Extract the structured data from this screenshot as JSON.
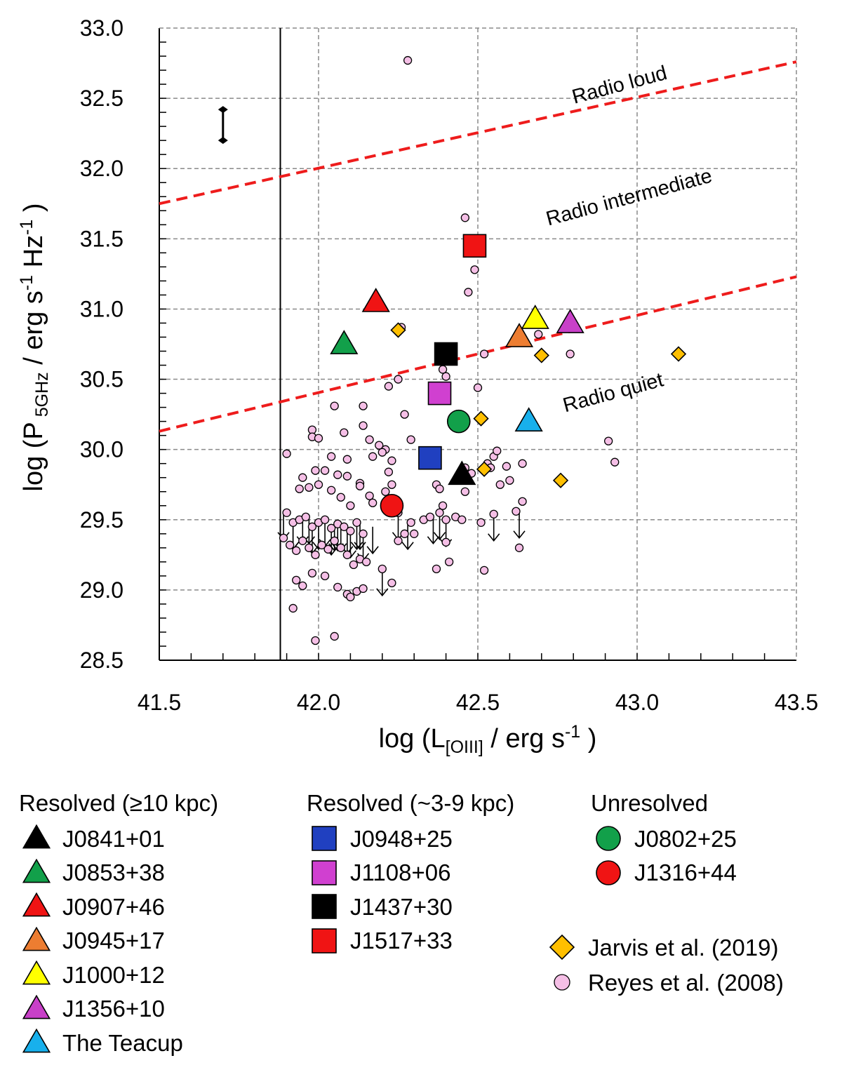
{
  "chart_data": {
    "type": "scatter",
    "xlabel": "log (L[OIII] / erg s-1 )",
    "ylabel": "log (P5GHz / erg s-1 Hz-1 )",
    "xlim": [
      41.5,
      43.5
    ],
    "ylim": [
      28.5,
      33.0
    ],
    "x_ticks": [
      "41.5",
      "42.0",
      "42.5",
      "43.0",
      "43.5"
    ],
    "y_ticks": [
      "28.5",
      "29.0",
      "29.5",
      "30.0",
      "30.5",
      "31.0",
      "31.5",
      "32.0",
      "32.5",
      "33.0"
    ],
    "grid": true,
    "vertical_line_x": 41.88,
    "error_bar": {
      "x": 41.7,
      "y_low": 32.2,
      "y_high": 32.42
    },
    "dividing_lines": [
      {
        "name": "upper",
        "x": [
          41.5,
          43.5
        ],
        "y": [
          31.75,
          32.76
        ],
        "color": "#ee1c1c"
      },
      {
        "name": "lower",
        "x": [
          41.5,
          43.5
        ],
        "y": [
          30.13,
          31.23
        ],
        "color": "#ee1c1c"
      }
    ],
    "region_labels": [
      {
        "text": "Radio loud",
        "x": 42.95,
        "y": 32.55,
        "angle": -15
      },
      {
        "text": "Radio intermediate",
        "x": 42.98,
        "y": 31.75,
        "angle": -15
      },
      {
        "text": "Radio quiet",
        "x": 42.93,
        "y": 30.36,
        "angle": -15
      }
    ],
    "series": [
      {
        "name": "J0841+01",
        "marker": "triangle",
        "color": "#000000",
        "points": [
          [
            42.45,
            29.82
          ]
        ]
      },
      {
        "name": "J0853+38",
        "marker": "triangle",
        "color": "#12a04a",
        "points": [
          [
            42.08,
            30.75
          ]
        ]
      },
      {
        "name": "J0907+46",
        "marker": "triangle",
        "color": "#f01414",
        "points": [
          [
            42.18,
            31.05
          ]
        ]
      },
      {
        "name": "J0945+17",
        "marker": "triangle",
        "color": "#ed7d31",
        "points": [
          [
            42.63,
            30.8
          ]
        ]
      },
      {
        "name": "J1000+12",
        "marker": "triangle",
        "color": "#ffff00",
        "points": [
          [
            42.68,
            30.93
          ]
        ]
      },
      {
        "name": "J1356+10",
        "marker": "triangle",
        "color": "#c840c8",
        "points": [
          [
            42.79,
            30.9
          ]
        ]
      },
      {
        "name": "The Teacup",
        "marker": "triangle",
        "color": "#18b0ec",
        "points": [
          [
            42.66,
            30.2
          ]
        ]
      },
      {
        "name": "J0948+25",
        "marker": "square",
        "color": "#2040c0",
        "points": [
          [
            42.35,
            29.94
          ]
        ]
      },
      {
        "name": "J1108+06",
        "marker": "square",
        "color": "#d040d0",
        "points": [
          [
            42.38,
            30.4
          ]
        ]
      },
      {
        "name": "J1437+30",
        "marker": "square",
        "color": "#000000",
        "points": [
          [
            42.4,
            30.68
          ]
        ]
      },
      {
        "name": "J1517+33",
        "marker": "square",
        "color": "#f01414",
        "points": [
          [
            42.49,
            31.45
          ]
        ]
      },
      {
        "name": "J0802+25",
        "marker": "circle",
        "color": "#12a04a",
        "points": [
          [
            42.44,
            30.2
          ]
        ]
      },
      {
        "name": "J1316+44",
        "marker": "circle",
        "color": "#f01414",
        "points": [
          [
            42.23,
            29.6
          ]
        ]
      },
      {
        "name": "Jarvis et al. (2019)",
        "marker": "diamond",
        "color": "#ffbf00",
        "points": [
          [
            42.25,
            30.85
          ],
          [
            42.51,
            30.22
          ],
          [
            42.52,
            29.86
          ],
          [
            42.7,
            30.67
          ],
          [
            42.76,
            29.78
          ],
          [
            43.13,
            30.68
          ]
        ]
      },
      {
        "name": "Reyes et al. (2008)",
        "marker": "small-circle",
        "color": "#f5bfe6",
        "points": [
          [
            42.28,
            32.77
          ],
          [
            42.46,
            31.65
          ],
          [
            42.49,
            31.28
          ],
          [
            42.47,
            31.12
          ],
          [
            42.26,
            30.87
          ],
          [
            42.39,
            30.57
          ],
          [
            42.4,
            30.52
          ],
          [
            42.25,
            30.5
          ],
          [
            42.22,
            30.45
          ],
          [
            42.5,
            30.44
          ],
          [
            42.52,
            30.68
          ],
          [
            42.69,
            30.82
          ],
          [
            42.79,
            30.68
          ],
          [
            42.05,
            30.31
          ],
          [
            42.14,
            30.31
          ],
          [
            41.98,
            30.14
          ],
          [
            41.98,
            30.09
          ],
          [
            42.0,
            30.08
          ],
          [
            42.08,
            30.12
          ],
          [
            42.14,
            30.17
          ],
          [
            42.27,
            30.25
          ],
          [
            42.16,
            30.07
          ],
          [
            42.19,
            30.03
          ],
          [
            42.21,
            30.0
          ],
          [
            42.29,
            30.07
          ],
          [
            42.04,
            29.95
          ],
          [
            42.09,
            29.93
          ],
          [
            42.17,
            29.95
          ],
          [
            42.2,
            29.98
          ],
          [
            42.23,
            29.92
          ],
          [
            42.22,
            29.84
          ],
          [
            41.9,
            29.97
          ],
          [
            41.99,
            29.85
          ],
          [
            42.02,
            29.85
          ],
          [
            41.95,
            29.8
          ],
          [
            41.94,
            29.72
          ],
          [
            41.97,
            29.73
          ],
          [
            42.06,
            29.82
          ],
          [
            42.09,
            29.81
          ],
          [
            42.13,
            29.76
          ],
          [
            42.13,
            29.74
          ],
          [
            42.21,
            29.7
          ],
          [
            42.23,
            29.75
          ],
          [
            42.0,
            29.75
          ],
          [
            42.04,
            29.71
          ],
          [
            42.07,
            29.66
          ],
          [
            42.1,
            29.6
          ],
          [
            42.16,
            29.67
          ],
          [
            42.17,
            29.62
          ],
          [
            42.25,
            29.55
          ],
          [
            42.29,
            29.48
          ],
          [
            42.37,
            29.75
          ],
          [
            42.38,
            29.72
          ],
          [
            42.39,
            29.6
          ],
          [
            42.4,
            29.5
          ],
          [
            42.43,
            29.52
          ],
          [
            42.45,
            29.5
          ],
          [
            42.46,
            29.7
          ],
          [
            42.46,
            29.87
          ],
          [
            42.48,
            29.83
          ],
          [
            42.53,
            29.9
          ],
          [
            42.55,
            29.95
          ],
          [
            42.56,
            29.99
          ],
          [
            42.54,
            29.87
          ],
          [
            42.57,
            29.75
          ],
          [
            42.6,
            29.78
          ],
          [
            42.59,
            29.88
          ],
          [
            42.64,
            29.9
          ],
          [
            42.62,
            29.56
          ],
          [
            42.64,
            29.63
          ],
          [
            42.55,
            29.54
          ],
          [
            42.51,
            29.48
          ],
          [
            42.52,
            29.14
          ],
          [
            42.37,
            29.15
          ],
          [
            42.41,
            29.2
          ],
          [
            42.4,
            29.34
          ],
          [
            42.38,
            29.55
          ],
          [
            42.63,
            29.3
          ],
          [
            42.91,
            30.06
          ],
          [
            42.93,
            29.91
          ],
          [
            41.9,
            29.55
          ],
          [
            41.92,
            29.48
          ],
          [
            41.94,
            29.5
          ],
          [
            41.96,
            29.52
          ],
          [
            41.98,
            29.45
          ],
          [
            42.0,
            29.48
          ],
          [
            42.02,
            29.5
          ],
          [
            42.04,
            29.44
          ],
          [
            42.06,
            29.47
          ],
          [
            42.08,
            29.45
          ],
          [
            42.1,
            29.42
          ],
          [
            42.12,
            29.48
          ],
          [
            42.14,
            29.4
          ],
          [
            41.89,
            29.37
          ],
          [
            41.91,
            29.32
          ],
          [
            41.93,
            29.28
          ],
          [
            41.95,
            29.35
          ],
          [
            41.97,
            29.3
          ],
          [
            41.99,
            29.25
          ],
          [
            42.01,
            29.32
          ],
          [
            42.03,
            29.29
          ],
          [
            42.05,
            29.35
          ],
          [
            42.07,
            29.3
          ],
          [
            42.09,
            29.25
          ],
          [
            42.11,
            29.18
          ],
          [
            42.13,
            29.22
          ],
          [
            42.15,
            29.2
          ],
          [
            41.93,
            29.07
          ],
          [
            41.95,
            29.03
          ],
          [
            41.98,
            29.12
          ],
          [
            42.02,
            29.1
          ],
          [
            42.06,
            29.02
          ],
          [
            42.09,
            28.97
          ],
          [
            42.1,
            28.95
          ],
          [
            42.12,
            28.99
          ],
          [
            42.14,
            29.01
          ],
          [
            41.92,
            28.87
          ],
          [
            41.99,
            28.64
          ],
          [
            42.05,
            28.67
          ],
          [
            42.2,
            29.15
          ],
          [
            42.23,
            29.05
          ],
          [
            42.25,
            29.35
          ],
          [
            42.27,
            29.4
          ],
          [
            42.3,
            29.4
          ],
          [
            42.33,
            29.5
          ],
          [
            42.35,
            29.52
          ]
        ]
      }
    ],
    "upper_limit_arrows_x": [
      41.89,
      41.92,
      41.95,
      41.97,
      42.0,
      42.02,
      42.05,
      42.07,
      42.1,
      42.12,
      42.14,
      42.17,
      42.2,
      42.25,
      42.28,
      42.36,
      42.38,
      42.4,
      42.55,
      42.63,
      41.98,
      42.04,
      42.09,
      42.13,
      41.92,
      42.06
    ]
  },
  "legend": {
    "groups": [
      {
        "title": "Resolved (≥10 kpc)",
        "items": [
          {
            "label": "J0841+01",
            "marker": "triangle",
            "color": "#000000"
          },
          {
            "label": "J0853+38",
            "marker": "triangle",
            "color": "#12a04a"
          },
          {
            "label": "J0907+46",
            "marker": "triangle",
            "color": "#f01414"
          },
          {
            "label": "J0945+17",
            "marker": "triangle",
            "color": "#ed7d31"
          },
          {
            "label": "J1000+12",
            "marker": "triangle",
            "color": "#ffff00"
          },
          {
            "label": "J1356+10",
            "marker": "triangle",
            "color": "#c840c8"
          },
          {
            "label": "The Teacup",
            "marker": "triangle",
            "color": "#18b0ec"
          }
        ]
      },
      {
        "title": "Resolved (~3-9 kpc)",
        "items": [
          {
            "label": "J0948+25",
            "marker": "square",
            "color": "#2040c0"
          },
          {
            "label": "J1108+06",
            "marker": "square",
            "color": "#d040d0"
          },
          {
            "label": "J1437+30",
            "marker": "square",
            "color": "#000000"
          },
          {
            "label": "J1517+33",
            "marker": "square",
            "color": "#f01414"
          }
        ]
      },
      {
        "title": "Unresolved",
        "items": [
          {
            "label": "J0802+25",
            "marker": "circle",
            "color": "#12a04a"
          },
          {
            "label": "J1316+44",
            "marker": "circle",
            "color": "#f01414"
          }
        ]
      }
    ],
    "extra": [
      {
        "label": "Jarvis et al. (2019)",
        "marker": "diamond",
        "color": "#ffbf00"
      },
      {
        "label": "Reyes et al. (2008)",
        "marker": "small-circle",
        "color": "#f5bfe6"
      }
    ]
  }
}
